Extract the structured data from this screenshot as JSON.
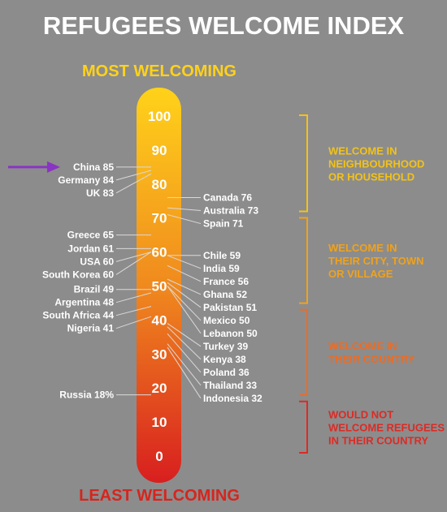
{
  "title": "REFUGEES WELCOME INDEX",
  "top_label": "MOST WELCOMING",
  "bottom_label": "LEAST WELCOMING",
  "colors": {
    "background": "#8c8c8c",
    "gradient_top": "#ffd21a",
    "gradient_bottom": "#d81f1f",
    "arrow": "#8a34c4",
    "connector": "#d9d9d9"
  },
  "bands": [
    {
      "lines": [
        "WELCOME IN",
        "NEIGHBOURHOOD",
        "OR HOUSEHOLD"
      ],
      "color": "#f2c21a",
      "range": [
        71,
        100
      ]
    },
    {
      "lines": [
        "WELCOME IN",
        "THEIR CITY, TOWN",
        "OR VILLAGE"
      ],
      "color": "#f0a21c",
      "range": [
        44,
        71
      ]
    },
    {
      "lines": [
        "WELCOME IN",
        "THEIR COUNTRY"
      ],
      "color": "#ee6b22",
      "range": [
        17,
        44
      ]
    },
    {
      "lines": [
        "WOULD NOT",
        "WELCOME REFUGEES",
        "IN THEIR COUNTRY"
      ],
      "color": "#dd2a24",
      "range": [
        0,
        17
      ]
    }
  ],
  "chart_data": {
    "type": "scale",
    "title": "REFUGEES WELCOME INDEX",
    "ylim": [
      0,
      100
    ],
    "ticks": [
      0,
      10,
      20,
      30,
      40,
      50,
      60,
      70,
      80,
      90,
      100
    ],
    "highlight": "China",
    "left": [
      {
        "name": "China",
        "label": "85",
        "value": 85
      },
      {
        "name": "Germany",
        "label": "84",
        "value": 84
      },
      {
        "name": "UK",
        "label": "83",
        "value": 83
      },
      {
        "name": "Greece",
        "label": "65",
        "value": 65
      },
      {
        "name": "Jordan",
        "label": "61",
        "value": 61
      },
      {
        "name": "USA",
        "label": "60",
        "value": 60
      },
      {
        "name": "South Korea",
        "label": "60",
        "value": 60
      },
      {
        "name": "Brazil",
        "label": "49",
        "value": 49
      },
      {
        "name": "Argentina",
        "label": "48",
        "value": 48
      },
      {
        "name": "South Africa",
        "label": "44",
        "value": 44
      },
      {
        "name": "Nigeria",
        "label": "41",
        "value": 41
      },
      {
        "name": "Russia",
        "label": "18%",
        "value": 18
      }
    ],
    "right": [
      {
        "name": "Canada",
        "label": "76",
        "value": 76
      },
      {
        "name": "Australia",
        "label": "73",
        "value": 73
      },
      {
        "name": "Spain",
        "label": "71",
        "value": 71
      },
      {
        "name": "Chile",
        "label": "59",
        "value": 59
      },
      {
        "name": "India",
        "label": "59",
        "value": 59
      },
      {
        "name": "France",
        "label": "56",
        "value": 56
      },
      {
        "name": "Ghana",
        "label": "52",
        "value": 52
      },
      {
        "name": "Pakistan",
        "label": "51",
        "value": 51
      },
      {
        "name": "Mexico",
        "label": "50",
        "value": 50
      },
      {
        "name": "Lebanon",
        "label": "50",
        "value": 50
      },
      {
        "name": "Turkey",
        "label": "39",
        "value": 39
      },
      {
        "name": "Kenya",
        "label": "38",
        "value": 38
      },
      {
        "name": "Poland",
        "label": "36",
        "value": 36
      },
      {
        "name": "Thailand",
        "label": "33",
        "value": 33
      },
      {
        "name": "Indonesia",
        "label": "32",
        "value": 32
      }
    ]
  }
}
